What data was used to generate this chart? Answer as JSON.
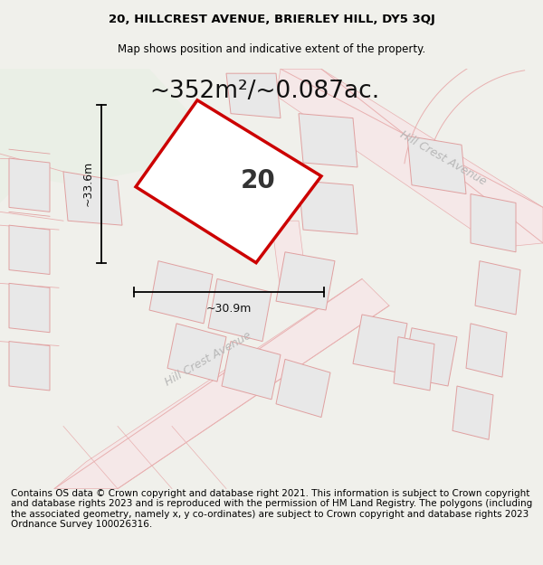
{
  "title_line1": "20, HILLCREST AVENUE, BRIERLEY HILL, DY5 3QJ",
  "title_line2": "Map shows position and indicative extent of the property.",
  "area_text": "~352m²/~0.087ac.",
  "width_label": "~30.9m",
  "height_label": "~33.6m",
  "number_label": "20",
  "street_label_lower": "Hill Crest Avenue",
  "street_label_upper": "Hill Crest Avenue",
  "footer_text": "Contains OS data © Crown copyright and database right 2021. This information is subject to Crown copyright and database rights 2023 and is reproduced with the permission of HM Land Registry. The polygons (including the associated geometry, namely x, y co-ordinates) are subject to Crown copyright and database rights 2023 Ordnance Survey 100026316.",
  "map_bg": "#f7f7f5",
  "green_color": "#eaefe6",
  "road_fill": "#f5e8e8",
  "road_line": "#e8b0b0",
  "plot_fill": "#e8e8e8",
  "plot_edge": "#e0a0a0",
  "property_fill": "#ffffff",
  "property_edge": "#cc0000",
  "bg_color": "#f0f0eb",
  "title_fontsize": 9.5,
  "subtitle_fontsize": 8.5,
  "area_fontsize": 19,
  "number_fontsize": 20,
  "dim_fontsize": 9,
  "street_fontsize": 9,
  "footer_fontsize": 7.5
}
